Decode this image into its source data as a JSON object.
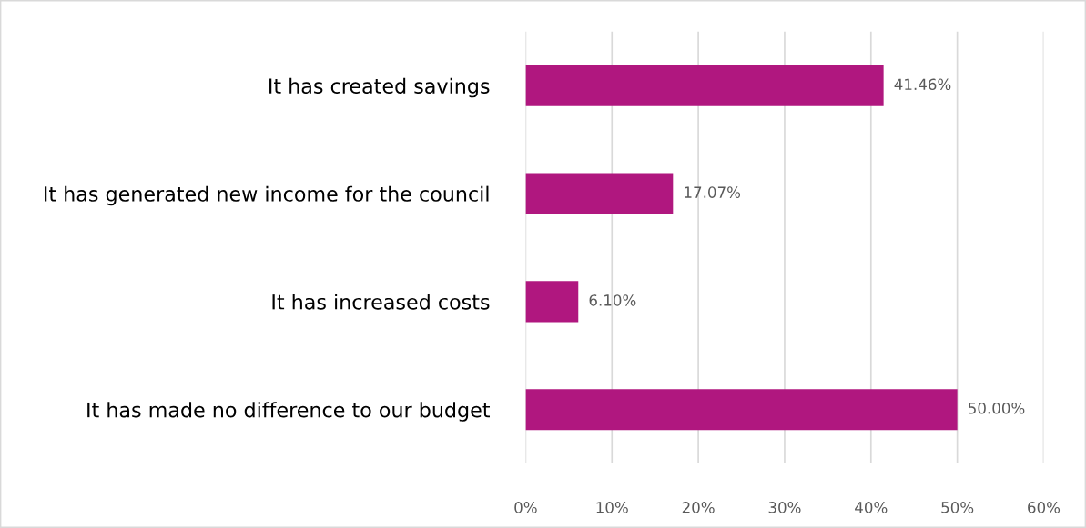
{
  "chart_data": {
    "type": "bar",
    "orientation": "horizontal",
    "categories": [
      "It has created savings",
      "It has generated new income for the council",
      "It has increased costs",
      "It has made no difference to our budget"
    ],
    "values": [
      41.46,
      17.07,
      6.1,
      50.0
    ],
    "value_labels": [
      "41.46%",
      "17.07%",
      "6.10%",
      "50.00%"
    ],
    "color": "#b0177f",
    "xlim": [
      0,
      60
    ],
    "xticks": [
      {
        "value": 0,
        "label": "0%"
      },
      {
        "value": 10,
        "label": "10%"
      },
      {
        "value": 20,
        "label": "20%"
      },
      {
        "value": 30,
        "label": "30%"
      },
      {
        "value": 40,
        "label": "40%"
      },
      {
        "value": 50,
        "label": "50%"
      },
      {
        "value": 60,
        "label": "60%"
      }
    ],
    "grid": "x",
    "legend": false
  }
}
